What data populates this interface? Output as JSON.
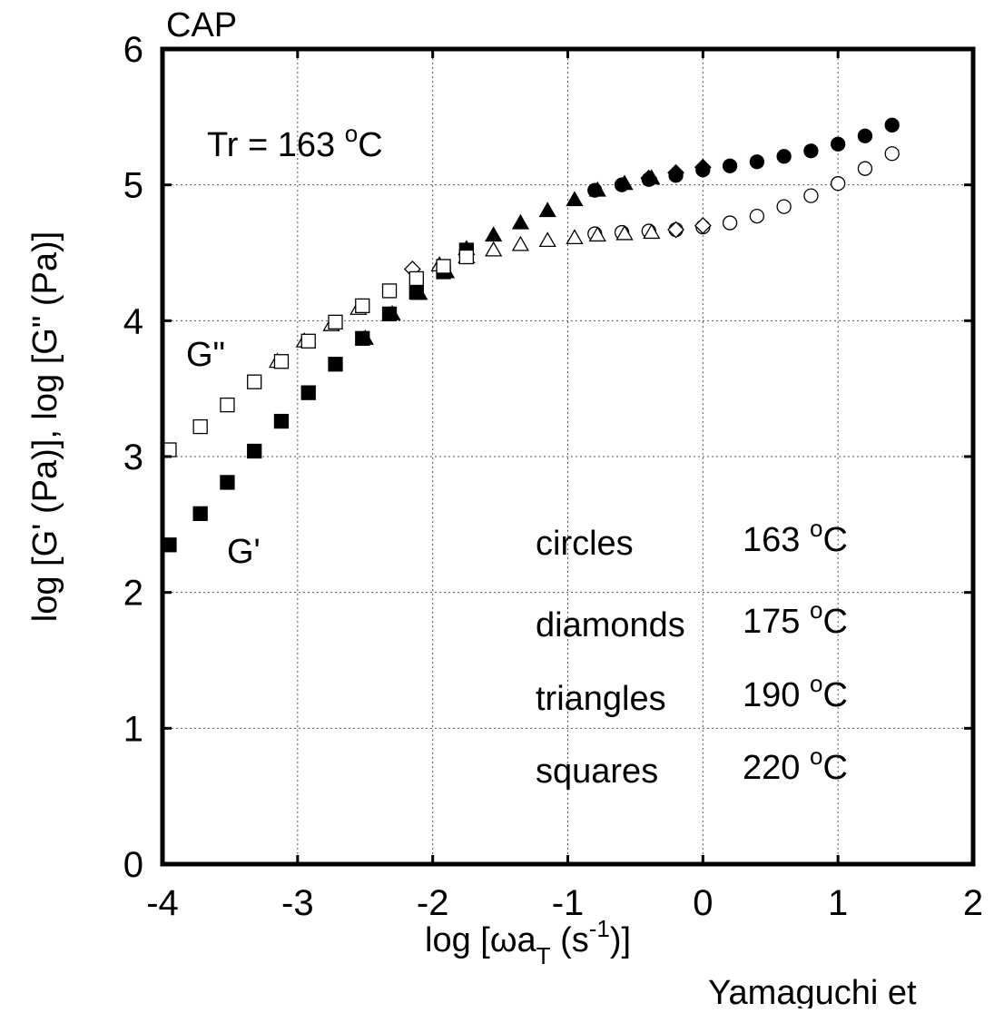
{
  "chart_data": {
    "type": "scatter",
    "title": "CAP",
    "xlabel": "log [ωa_T (s^-1)]",
    "xlabel_parts": {
      "pre": "log [ωa",
      "sub": "T",
      "mid": " (s",
      "sup": "-1",
      "post": ")]"
    },
    "ylabel": "log [G' (Pa)], log [G\" (Pa)]",
    "xlim": [
      -4,
      2
    ],
    "ylim": [
      0,
      6
    ],
    "xticks": [
      -4,
      -3,
      -2,
      -1,
      0,
      1,
      2
    ],
    "yticks": [
      0,
      1,
      2,
      3,
      4,
      5,
      6
    ],
    "grid": true,
    "annotations": {
      "tr": {
        "pre": "Tr = 163 ",
        "sup": "o",
        "post": "C"
      },
      "g_double_prime": "G\"",
      "g_prime": "G'",
      "footer": "Yamaguchi et"
    },
    "legend": [
      {
        "shape": "circles",
        "temp": "163 ",
        "sup": "o",
        "unit": "C"
      },
      {
        "shape": "diamonds",
        "temp": "175 ",
        "sup": "o",
        "unit": "C"
      },
      {
        "shape": "triangles",
        "temp": "190 ",
        "sup": "o",
        "unit": "C"
      },
      {
        "shape": "squares",
        "temp": "220 ",
        "sup": "o",
        "unit": "C"
      }
    ],
    "series": [
      {
        "name": "G' circles",
        "marker": "circle",
        "filled": true,
        "x": [
          -0.8,
          -0.6,
          -0.4,
          -0.2,
          0.0,
          0.2,
          0.4,
          0.6,
          0.8,
          1.0,
          1.2,
          1.4
        ],
        "y": [
          4.96,
          5.0,
          5.04,
          5.07,
          5.11,
          5.14,
          5.17,
          5.21,
          5.25,
          5.3,
          5.36,
          5.44
        ]
      },
      {
        "name": "G\" circles",
        "marker": "circle",
        "filled": false,
        "x": [
          -0.8,
          -0.6,
          -0.4,
          -0.2,
          0.0,
          0.2,
          0.4,
          0.6,
          0.8,
          1.0,
          1.2,
          1.4
        ],
        "y": [
          4.64,
          4.65,
          4.66,
          4.67,
          4.69,
          4.72,
          4.77,
          4.84,
          4.92,
          5.01,
          5.12,
          5.23
        ]
      },
      {
        "name": "G' diamonds",
        "marker": "diamond",
        "filled": true,
        "x": [
          -0.4,
          -0.2,
          0.0
        ],
        "y": [
          5.05,
          5.09,
          5.13
        ]
      },
      {
        "name": "G\" diamonds",
        "marker": "diamond",
        "filled": false,
        "x": [
          -2.15,
          -0.2,
          0.0
        ],
        "y": [
          4.38,
          4.67,
          4.7
        ]
      },
      {
        "name": "G' triangles",
        "marker": "triangle",
        "filled": true,
        "x": [
          -2.5,
          -2.3,
          -2.1,
          -1.9,
          -1.75,
          -1.55,
          -1.35,
          -1.15,
          -0.95,
          -0.78,
          -0.58,
          -0.38
        ],
        "y": [
          3.87,
          4.05,
          4.2,
          4.36,
          4.53,
          4.63,
          4.72,
          4.81,
          4.89,
          4.96,
          5.01,
          5.05
        ]
      },
      {
        "name": "G\" triangles",
        "marker": "triangle",
        "filled": false,
        "x": [
          -3.15,
          -2.95,
          -2.75,
          -2.55,
          -1.95,
          -1.75,
          -1.55,
          -1.35,
          -1.15,
          -0.95,
          -0.78,
          -0.58,
          -0.38
        ],
        "y": [
          3.7,
          3.85,
          3.97,
          4.09,
          4.41,
          4.47,
          4.52,
          4.56,
          4.59,
          4.61,
          4.63,
          4.64,
          4.65
        ]
      },
      {
        "name": "G' squares",
        "marker": "square",
        "filled": true,
        "x": [
          -3.95,
          -3.72,
          -3.52,
          -3.32,
          -3.12,
          -2.92,
          -2.72,
          -2.52,
          -2.32,
          -2.12,
          -1.92,
          -1.75
        ],
        "y": [
          2.35,
          2.58,
          2.81,
          3.04,
          3.26,
          3.47,
          3.68,
          3.87,
          4.05,
          4.21,
          4.36,
          4.52
        ]
      },
      {
        "name": "G\" squares",
        "marker": "square",
        "filled": false,
        "x": [
          -3.95,
          -3.72,
          -3.52,
          -3.32,
          -3.12,
          -2.92,
          -2.72,
          -2.52,
          -2.32,
          -2.12,
          -1.92,
          -1.75
        ],
        "y": [
          3.05,
          3.22,
          3.38,
          3.55,
          3.7,
          3.85,
          3.99,
          4.11,
          4.22,
          4.31,
          4.4,
          4.47
        ]
      }
    ]
  }
}
